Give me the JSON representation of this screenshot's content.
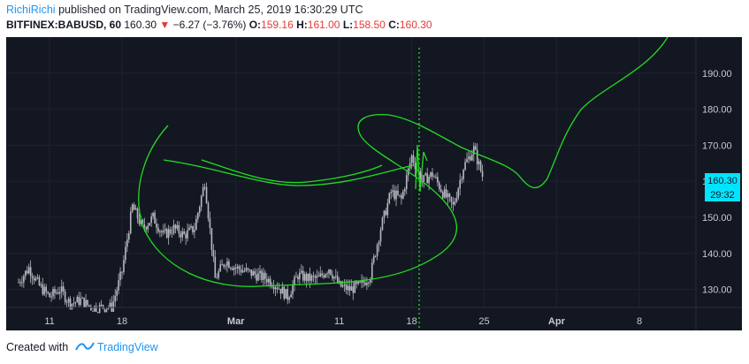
{
  "header": {
    "user": "RichiRichi",
    "published_text": "published on TradingView.com, March 25, 2019 16:30:29 UTC",
    "symbol": "BITFINEX:BABUSD, 60",
    "last": "160.30",
    "change": "−6.27 (−3.76%)",
    "o_label": "O:",
    "o_value": "159.16",
    "h_label": "H:",
    "h_value": "161.00",
    "l_label": "L:",
    "l_value": "158.50",
    "c_label": "C:",
    "c_value": "160.30"
  },
  "footer": {
    "created_with": "Created with",
    "brand": "TradingView"
  },
  "price_badge": {
    "price": "160.30",
    "countdown": "29:32"
  },
  "colors": {
    "background": "#131722",
    "grid": "#1e2230",
    "candle": "#b7b9c0",
    "drawing": "#22dd22",
    "badge": "#00e5ff",
    "axis_text": "#c8cad2"
  },
  "chart_data": {
    "type": "candlestick",
    "title": "BITFINEX:BABUSD, 60",
    "ylim": [
      125,
      200
    ],
    "yticks": [
      130,
      140,
      150,
      160,
      170,
      180,
      190
    ],
    "x_tick_labels": [
      "11",
      "18",
      "Mar",
      "11",
      "18",
      "25",
      "Apr",
      "8"
    ],
    "last_price": 160.3,
    "price_path": [
      {
        "t": "Feb 8",
        "price": 132
      },
      {
        "t": "Feb 9",
        "price": 136
      },
      {
        "t": "Feb 10",
        "price": 131
      },
      {
        "t": "Feb 11",
        "price": 128
      },
      {
        "t": "Feb 12",
        "price": 130
      },
      {
        "t": "Feb 13",
        "price": 126
      },
      {
        "t": "Feb 14",
        "price": 127
      },
      {
        "t": "Feb 15",
        "price": 125
      },
      {
        "t": "Feb 16",
        "price": 125
      },
      {
        "t": "Feb 17",
        "price": 125
      },
      {
        "t": "Feb 18",
        "price": 135
      },
      {
        "t": "Feb 19",
        "price": 153
      },
      {
        "t": "Feb 20",
        "price": 147
      },
      {
        "t": "Feb 21",
        "price": 150
      },
      {
        "t": "Feb 22",
        "price": 145
      },
      {
        "t": "Feb 23",
        "price": 147
      },
      {
        "t": "Feb 24",
        "price": 145
      },
      {
        "t": "Feb 25",
        "price": 147
      },
      {
        "t": "Feb 26",
        "price": 160
      },
      {
        "t": "Feb 27",
        "price": 133
      },
      {
        "t": "Feb 28",
        "price": 138
      },
      {
        "t": "Mar 1",
        "price": 136
      },
      {
        "t": "Mar 2",
        "price": 135
      },
      {
        "t": "Mar 3",
        "price": 134
      },
      {
        "t": "Mar 4",
        "price": 133
      },
      {
        "t": "Mar 5",
        "price": 131
      },
      {
        "t": "Mar 6",
        "price": 128
      },
      {
        "t": "Mar 7",
        "price": 134
      },
      {
        "t": "Mar 8",
        "price": 133
      },
      {
        "t": "Mar 9",
        "price": 133
      },
      {
        "t": "Mar 10",
        "price": 136
      },
      {
        "t": "Mar 11",
        "price": 131
      },
      {
        "t": "Mar 12",
        "price": 130
      },
      {
        "t": "Mar 13",
        "price": 131
      },
      {
        "t": "Mar 14",
        "price": 134
      },
      {
        "t": "Mar 15",
        "price": 147
      },
      {
        "t": "Mar 16",
        "price": 157
      },
      {
        "t": "Mar 17",
        "price": 155
      },
      {
        "t": "Mar 18",
        "price": 167
      },
      {
        "t": "Mar 19",
        "price": 160
      },
      {
        "t": "Mar 20",
        "price": 162
      },
      {
        "t": "Mar 21",
        "price": 157
      },
      {
        "t": "Mar 22",
        "price": 153
      },
      {
        "t": "Mar 23",
        "price": 164
      },
      {
        "t": "Mar 24",
        "price": 169
      },
      {
        "t": "Mar 25",
        "price": 160
      }
    ]
  }
}
